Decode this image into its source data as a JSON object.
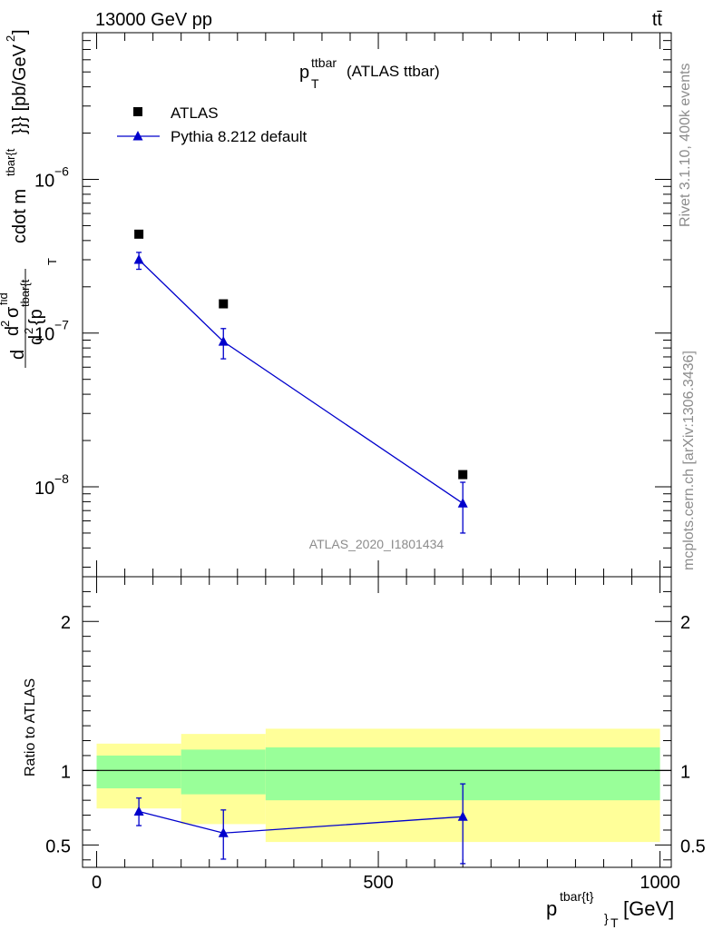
{
  "header": {
    "energy_label": "13000 GeV pp",
    "process_label": "tt̄"
  },
  "side_labels": {
    "rivet": "Rivet 3.1.10,  400k events",
    "source": "mcplots.cern.ch [arXiv:1306.3436]"
  },
  "chart_data": [
    {
      "type": "scatter",
      "panel": "main",
      "title_main": "p",
      "title_sup": "ttbar",
      "title_sub": "T",
      "title_suffix": "(ATLAS ttbar)",
      "watermark": "ATLAS_2020_I1801434",
      "ylabel": "d d²σ^{fid} / d² {p_T^{tbar{t}}} cdot m^{tbar{t}}}} [pb/GeV²]",
      "ylabel_parts": {
        "d1": "d",
        "d2": "d",
        "sup2": "2",
        "sigma": "σ",
        "fid": "fid",
        "d3": "d",
        "sup2b": "2",
        "brace_p": "{p",
        "tbar_t": "tbar{t",
        "T": "T",
        "cdot": "cdot m",
        "tbar2": "tbar{t",
        "close": "}}} [pb/GeV",
        "gev_sup": "2",
        "bracket": "]"
      },
      "yscale": "log",
      "ylim": [
        2.6e-09,
        9e-06
      ],
      "xlim": [
        -25,
        1020
      ],
      "yticks": [
        {
          "value": 1e-08,
          "base": "10",
          "exp": "−8"
        },
        {
          "value": 1e-07,
          "base": "10",
          "exp": "−7"
        },
        {
          "value": 1e-06,
          "base": "10",
          "exp": "−6"
        }
      ],
      "legend": [
        {
          "label": "ATLAS",
          "marker": "square",
          "color": "#000000"
        },
        {
          "label": "Pythia 8.212 default",
          "marker": "triangle",
          "color": "#0000cc"
        }
      ],
      "series": [
        {
          "name": "ATLAS",
          "x": [
            75,
            225,
            650
          ],
          "y": [
            4.4e-07,
            1.55e-07,
            1.2e-08
          ],
          "yerr_lo": [
            0,
            0,
            0
          ],
          "yerr_hi": [
            0,
            0,
            0
          ]
        },
        {
          "name": "Pythia 8.212 default",
          "x": [
            75,
            225,
            650
          ],
          "y": [
            3e-07,
            8.8e-08,
            7.8e-09
          ],
          "yerr_lo": [
            2.6e-07,
            6.8e-08,
            5e-09
          ],
          "yerr_hi": [
            3.35e-07,
            1.07e-07,
            1.07e-08
          ]
        }
      ]
    },
    {
      "type": "scatter",
      "panel": "ratio",
      "ylabel": "Ratio to ATLAS",
      "xlabel_main": "p",
      "xlabel_sup": "tbar{t}",
      "xlabel_sub": "}",
      "xlabel_sub2": "T",
      "xlabel_unit": "[GeV]",
      "xlim": [
        -25,
        1020
      ],
      "ylim": [
        0.35,
        2.3
      ],
      "xticks": [
        {
          "value": 0,
          "label": "0"
        },
        {
          "value": 500,
          "label": "500"
        },
        {
          "value": 1000,
          "label": "1000"
        }
      ],
      "yticks": [
        {
          "value": 0.5,
          "label": "0.5"
        },
        {
          "value": 1,
          "label": "1"
        },
        {
          "value": 2,
          "label": "2"
        }
      ],
      "reference_line": 1.0,
      "bands": [
        {
          "x0": 0,
          "x1": 150,
          "yellow_lo": 0.745,
          "yellow_hi": 1.18,
          "green_lo": 0.88,
          "green_hi": 1.1
        },
        {
          "x0": 150,
          "x1": 300,
          "yellow_lo": 0.64,
          "yellow_hi": 1.245,
          "green_lo": 0.84,
          "green_hi": 1.14
        },
        {
          "x0": 300,
          "x1": 1000,
          "yellow_lo": 0.52,
          "yellow_hi": 1.28,
          "green_lo": 0.8,
          "green_hi": 1.155
        }
      ],
      "series": [
        {
          "name": "Pythia 8.212 default",
          "x": [
            75,
            225,
            650
          ],
          "y": [
            0.725,
            0.58,
            0.69
          ],
          "yerr_lo": [
            0.63,
            0.405,
            0.375
          ],
          "yerr_hi": [
            0.815,
            0.735,
            0.91
          ]
        }
      ],
      "colors": {
        "yellow": "#ffff99",
        "green": "#99ff99",
        "mc": "#0000cc"
      }
    }
  ]
}
